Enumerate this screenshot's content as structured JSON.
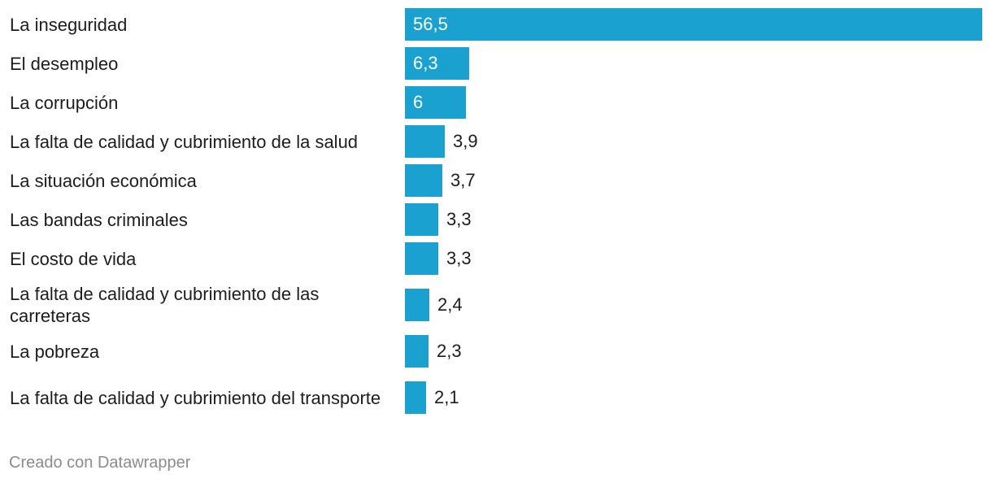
{
  "chart_data": {
    "type": "bar",
    "orientation": "horizontal",
    "categories": [
      "La inseguridad",
      "El desempleo",
      "La corrupción",
      "La falta de calidad y cubrimiento de la salud",
      "La situación económica",
      "Las bandas criminales",
      "El costo de vida",
      "La falta de calidad y cubrimiento de las carreteras",
      "La pobreza",
      "La falta de calidad y cubrimiento del transporte"
    ],
    "values": [
      56.5,
      6.3,
      6,
      3.9,
      3.7,
      3.3,
      3.3,
      2.4,
      2.3,
      2.1
    ],
    "value_labels": [
      "56,5",
      "6,3",
      "6",
      "3,9",
      "3,7",
      "3,3",
      "3,3",
      "2,4",
      "2,3",
      "2,1"
    ],
    "xlim": [
      0,
      56.5
    ],
    "bar_color": "#1aa1cf"
  },
  "footer": {
    "credit": "Creado con Datawrapper"
  }
}
